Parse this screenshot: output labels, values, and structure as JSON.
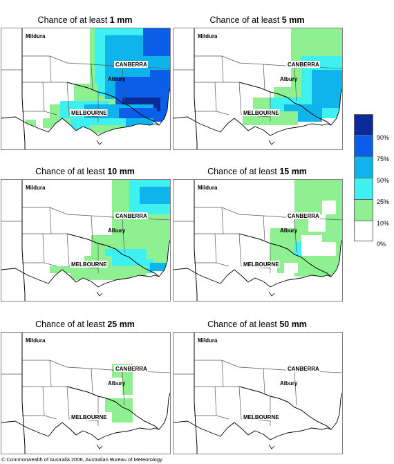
{
  "panels": [
    {
      "prefix": "Chance of at least ",
      "amount": "1 mm"
    },
    {
      "prefix": "Chance of at least ",
      "amount": "5 mm"
    },
    {
      "prefix": "Chance of at least ",
      "amount": "10 mm"
    },
    {
      "prefix": "Chance of at least ",
      "amount": "15 mm"
    },
    {
      "prefix": "Chance of at least ",
      "amount": "25 mm"
    },
    {
      "prefix": "Chance of at least ",
      "amount": "50 mm"
    }
  ],
  "cities": {
    "mildura": "Mildura",
    "canberra": "CANBERRA",
    "albury": "Albury",
    "melbourne": "MELBOURNE"
  },
  "legend": {
    "labels": [
      "90%",
      "75%",
      "50%",
      "25%",
      "10%",
      "0%"
    ],
    "colors": [
      "#0a2a9a",
      "#0a5ee8",
      "#10b4ec",
      "#3ef0f0",
      "#8ef090",
      "#ffffff"
    ]
  },
  "copyright": "© Commonwealth of Australia 2006, Australian Bureau of Meteorology"
}
